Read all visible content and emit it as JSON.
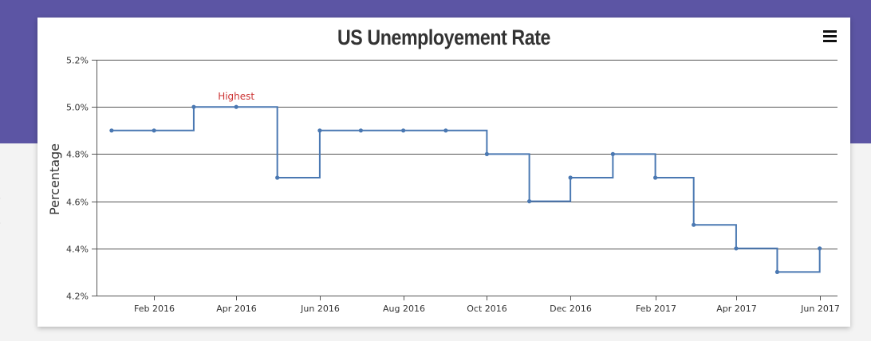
{
  "chart_data": {
    "type": "line",
    "step": true,
    "title": "US Unemployement Rate",
    "ylabel": "Percentage",
    "xlabel": "",
    "ylim": [
      4.2,
      5.2
    ],
    "xlim": [
      "2015-12-21",
      "2017-06-14"
    ],
    "y_ticks": [
      "4.2%",
      "4.4%",
      "4.6%",
      "4.8%",
      "5.0%",
      "5.2%"
    ],
    "y_tick_values": [
      4.2,
      4.4,
      4.6,
      4.8,
      5.0,
      5.2
    ],
    "x_ticks": [
      "Feb 2016",
      "Apr 2016",
      "Jun 2016",
      "Aug 2016",
      "Oct 2016",
      "Dec 2016",
      "Feb 2017",
      "Apr 2017",
      "Jun 2017"
    ],
    "x_tick_dates": [
      "2016-02-01",
      "2016-04-01",
      "2016-06-01",
      "2016-08-01",
      "2016-10-01",
      "2016-12-01",
      "2017-02-01",
      "2017-04-01",
      "2017-06-01"
    ],
    "grid": true,
    "color": "#4a78b2",
    "series": [
      {
        "name": "",
        "points": [
          {
            "x": "2016-01-01",
            "y": 4.9
          },
          {
            "x": "2016-02-01",
            "y": 4.9
          },
          {
            "x": "2016-03-01",
            "y": 5.0
          },
          {
            "x": "2016-04-01",
            "y": 5.0
          },
          {
            "x": "2016-05-01",
            "y": 4.7
          },
          {
            "x": "2016-06-01",
            "y": 4.9
          },
          {
            "x": "2016-07-01",
            "y": 4.9
          },
          {
            "x": "2016-08-01",
            "y": 4.9
          },
          {
            "x": "2016-09-01",
            "y": 4.9
          },
          {
            "x": "2016-10-01",
            "y": 4.8
          },
          {
            "x": "2016-11-01",
            "y": 4.6
          },
          {
            "x": "2016-12-01",
            "y": 4.7
          },
          {
            "x": "2017-01-01",
            "y": 4.8
          },
          {
            "x": "2017-02-01",
            "y": 4.7
          },
          {
            "x": "2017-03-01",
            "y": 4.5
          },
          {
            "x": "2017-04-01",
            "y": 4.4
          },
          {
            "x": "2017-05-01",
            "y": 4.3
          },
          {
            "x": "2017-06-01",
            "y": 4.4
          }
        ]
      }
    ],
    "annotations": [
      {
        "text": "Highest",
        "x": "2016-04-01",
        "y": 5.0,
        "color": "#cc3333"
      }
    ]
  },
  "toolbar": {
    "menu_icon": "hamburger-menu-icon"
  },
  "colors": {
    "header_band": "#5c55a4",
    "background": "#f3f3f3"
  }
}
